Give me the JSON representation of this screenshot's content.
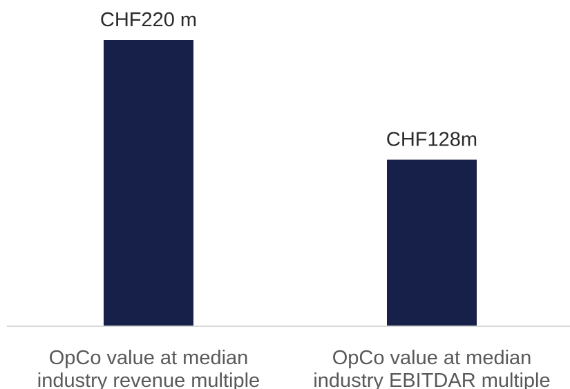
{
  "chart_data": {
    "type": "bar",
    "categories": [
      [
        "OpCo value at median",
        "industry revenue multiple"
      ],
      [
        "OpCo value at median",
        "industry EBITDAR multiple"
      ]
    ],
    "values": [
      220,
      128
    ],
    "data_labels": [
      "CHF220 m",
      "CHF128m"
    ],
    "unit": "CHF m",
    "ylim": [
      0,
      220
    ],
    "grid": false,
    "legend": "none",
    "title": "",
    "xlabel": "",
    "ylabel": ""
  },
  "colors": {
    "bar": "#172048",
    "baseline": "#d9d9d9",
    "label_text": "#2b2b2b",
    "category_text": "#595959"
  }
}
